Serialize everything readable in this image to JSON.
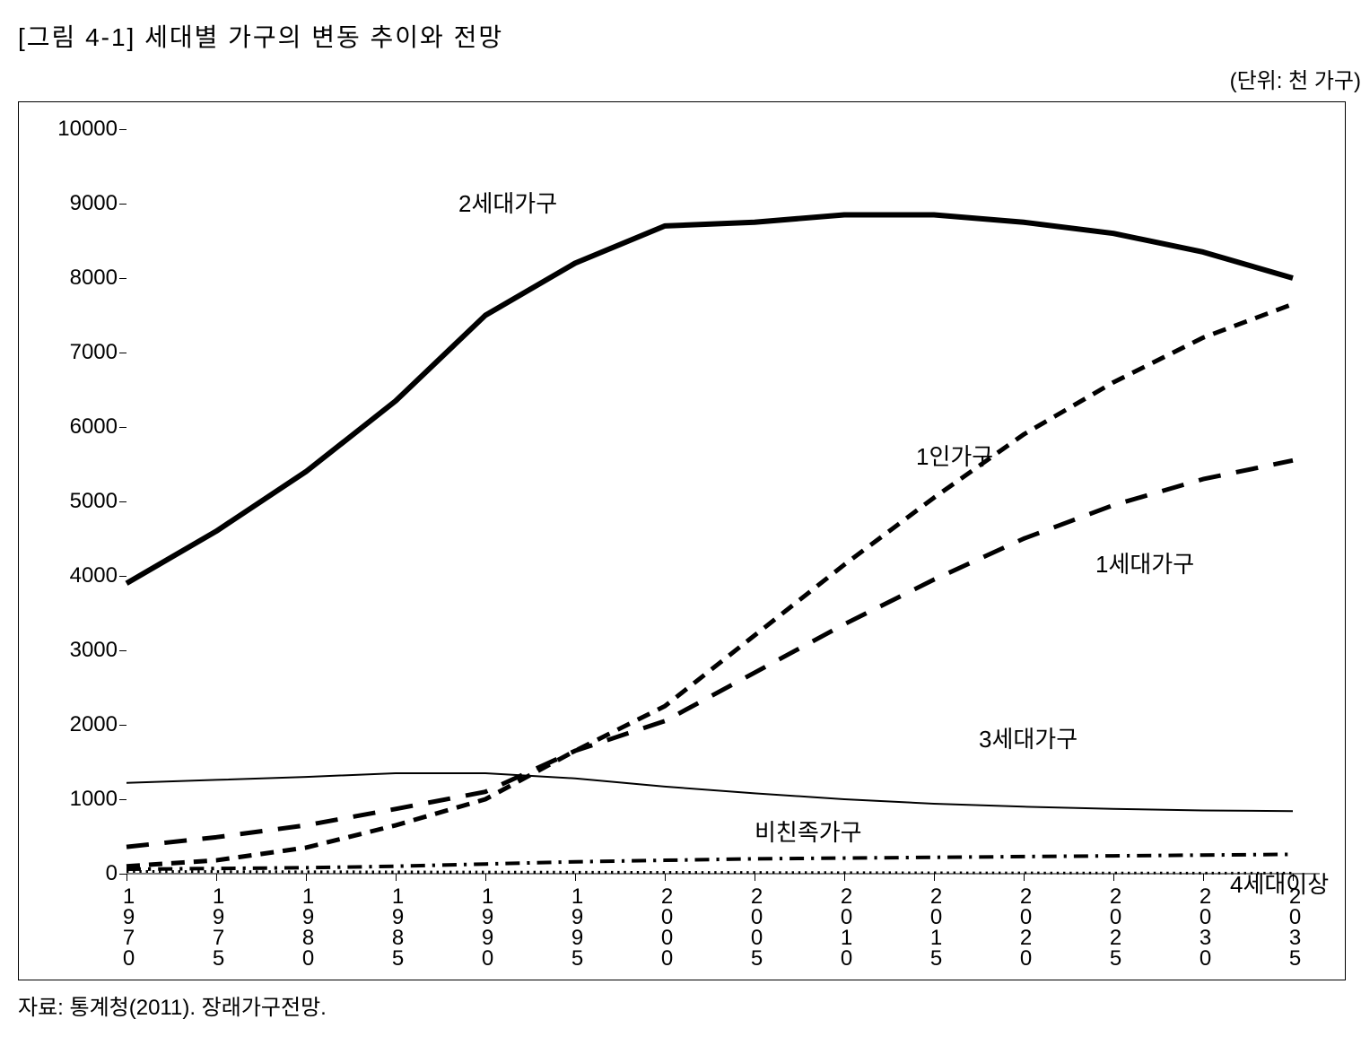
{
  "title": "[그림 4-1] 세대별 가구의 변동 추이와 전망",
  "unit_label": "(단위: 천 가구)",
  "source": "자료: 통계청(2011). 장래가구전망.",
  "chart": {
    "type": "line",
    "background_color": "#ffffff",
    "border_color": "#000000",
    "axis_color": "#000000",
    "tick_fontsize": 24,
    "title_fontsize": 28,
    "label_fontsize": 26,
    "x": {
      "categories": [
        "1970",
        "1975",
        "1980",
        "1985",
        "1990",
        "1995",
        "2000",
        "2005",
        "2010",
        "2015",
        "2020",
        "2025",
        "2030",
        "2035"
      ],
      "rotation": "vertical"
    },
    "y": {
      "min": 0,
      "max": 10000,
      "step": 1000
    },
    "series": [
      {
        "name": "2세대가구",
        "label": "2세대가구",
        "color": "#000000",
        "line_width": 6,
        "dash": "none",
        "values": [
          3900,
          4600,
          5400,
          6350,
          7500,
          8200,
          8700,
          8750,
          8850,
          8850,
          8750,
          8600,
          8350,
          8000
        ],
        "label_pos": {
          "x_index": 3.7,
          "y": 9050
        }
      },
      {
        "name": "1인가구",
        "label": "1인가구",
        "color": "#000000",
        "line_width": 5,
        "dash": "short-dash",
        "values": [
          100,
          180,
          350,
          650,
          1000,
          1650,
          2250,
          3200,
          4150,
          5050,
          5900,
          6600,
          7200,
          7650
        ],
        "label_pos": {
          "x_index": 8.8,
          "y": 5650
        }
      },
      {
        "name": "1세대가구",
        "label": "1세대가구",
        "color": "#000000",
        "line_width": 5,
        "dash": "long-dash",
        "values": [
          360,
          490,
          650,
          870,
          1100,
          1650,
          2050,
          2700,
          3350,
          3950,
          4500,
          4950,
          5300,
          5550
        ],
        "label_pos": {
          "x_index": 10.8,
          "y": 4200
        }
      },
      {
        "name": "3세대가구",
        "label": "3세대가구",
        "color": "#000000",
        "line_width": 2,
        "dash": "none",
        "values": [
          1220,
          1260,
          1300,
          1350,
          1350,
          1280,
          1170,
          1080,
          1000,
          940,
          900,
          870,
          850,
          840
        ],
        "label_pos": {
          "x_index": 9.5,
          "y": 1850
        }
      },
      {
        "name": "비친족가구",
        "label": "비친족가구",
        "color": "#000000",
        "line_width": 4,
        "dash": "dash-dot",
        "values": [
          60,
          70,
          80,
          100,
          130,
          160,
          180,
          200,
          210,
          220,
          230,
          240,
          250,
          260
        ],
        "label_pos": {
          "x_index": 7.0,
          "y": 600
        }
      },
      {
        "name": "4세대이상",
        "label": "4세대이상",
        "color": "#000000",
        "line_width": 3,
        "dash": "dot",
        "values": [
          30,
          28,
          26,
          24,
          22,
          20,
          18,
          16,
          14,
          12,
          10,
          9,
          8,
          7
        ],
        "label_pos": {
          "x_index": 12.3,
          "y": -100
        }
      }
    ]
  }
}
